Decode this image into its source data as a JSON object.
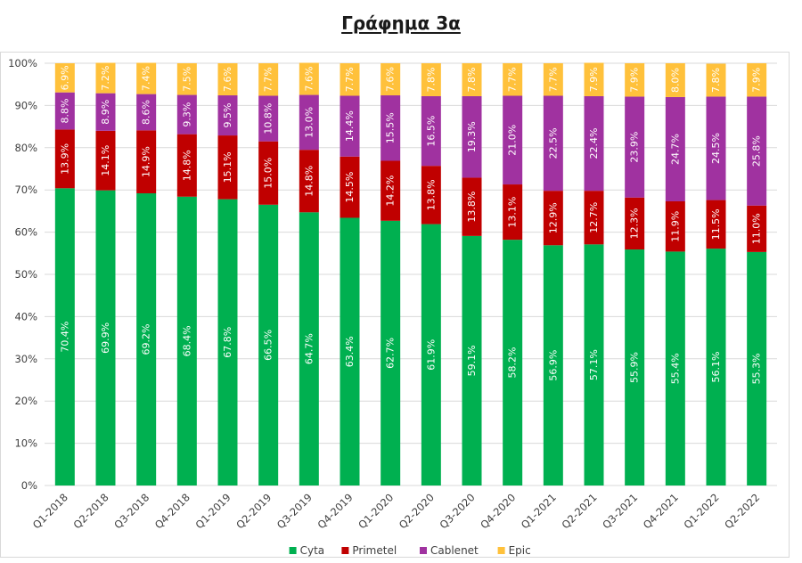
{
  "chart_data": {
    "type": "bar",
    "stacked": true,
    "title": "Γράφημα 3α",
    "categories": [
      "Q1-2018",
      "Q2-2018",
      "Q3-2018",
      "Q4-2018",
      "Q1-2019",
      "Q2-2019",
      "Q3-2019",
      "Q4-2019",
      "Q1-2020",
      "Q2-2020",
      "Q3-2020",
      "Q4-2020",
      "Q1-2021",
      "Q2-2021",
      "Q3-2021",
      "Q4-2021",
      "Q1-2022",
      "Q2-2022"
    ],
    "series": [
      {
        "name": "Cyta",
        "color": "#00b050",
        "values": [
          70.4,
          69.9,
          69.2,
          68.4,
          67.8,
          66.5,
          64.7,
          63.4,
          62.7,
          61.9,
          59.1,
          58.2,
          56.9,
          57.1,
          55.9,
          55.4,
          56.1,
          55.3
        ]
      },
      {
        "name": "Primetel",
        "color": "#c00000",
        "values": [
          13.9,
          14.1,
          14.9,
          14.8,
          15.1,
          15.0,
          14.8,
          14.5,
          14.2,
          13.8,
          13.8,
          13.1,
          12.9,
          12.7,
          12.3,
          11.9,
          11.5,
          11.0
        ]
      },
      {
        "name": "Cablenet",
        "color": "#a032a0",
        "values": [
          8.8,
          8.9,
          8.6,
          9.3,
          9.5,
          10.8,
          13.0,
          14.4,
          15.5,
          16.5,
          19.3,
          21.0,
          22.5,
          22.4,
          23.9,
          24.7,
          24.5,
          25.8
        ]
      },
      {
        "name": "Epic",
        "color": "#ffc13b",
        "values": [
          6.9,
          7.2,
          7.4,
          7.5,
          7.6,
          7.7,
          7.6,
          7.7,
          7.6,
          7.8,
          7.8,
          7.7,
          7.7,
          7.9,
          7.9,
          8.0,
          7.8,
          7.9
        ]
      }
    ],
    "yticks": [
      "0%",
      "10%",
      "20%",
      "30%",
      "40%",
      "50%",
      "60%",
      "70%",
      "80%",
      "90%",
      "100%"
    ],
    "ylim": [
      0,
      100
    ],
    "grid": true,
    "legend": "bottom"
  }
}
